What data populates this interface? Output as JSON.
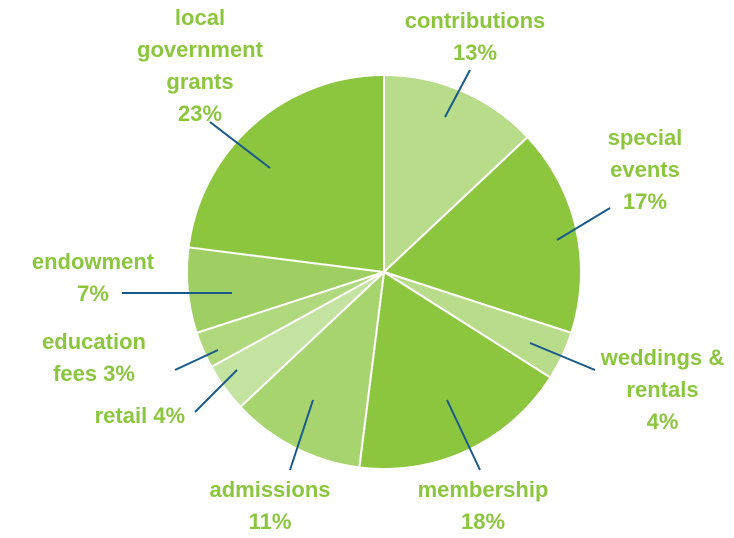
{
  "chart_data": {
    "type": "pie",
    "categories": [
      "contributions",
      "special events",
      "weddings & rentals",
      "membership",
      "admissions",
      "retail",
      "education fees",
      "endowment",
      "local government grants"
    ],
    "values": [
      13,
      17,
      4,
      18,
      11,
      4,
      3,
      7,
      23
    ],
    "value_labels": [
      "13%",
      "17%",
      "4%",
      "18%",
      "11%",
      "4%",
      "3%",
      "7%",
      "23%"
    ],
    "colors": [
      "#b9dc8a",
      "#8cc63f",
      "#b9dc8a",
      "#8cc63f",
      "#a8d46f",
      "#c5e3a0",
      "#b0d87c",
      "#9fcf62",
      "#8cc63f"
    ]
  }
}
